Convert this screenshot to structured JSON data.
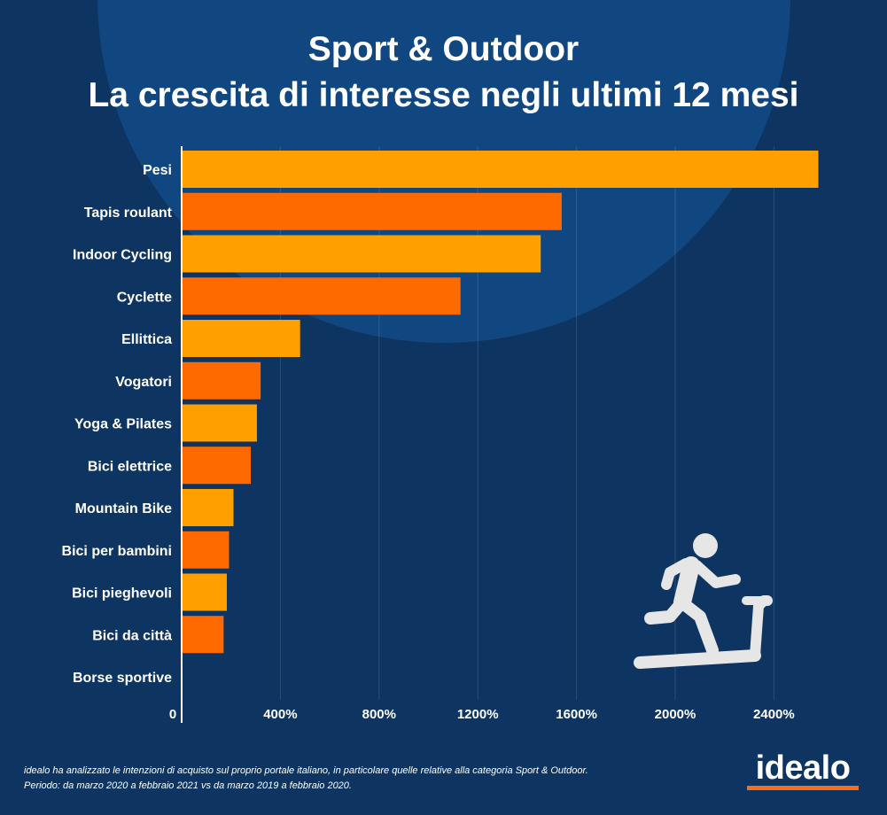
{
  "title": {
    "line1": "Sport & Outdoor",
    "line2": "La crescita di interesse negli ultimi 12 mesi"
  },
  "colors": {
    "background": "#0e3562",
    "circle": "#114780",
    "bar_a": "#ffa000",
    "bar_b": "#ff6a00",
    "axis": "#ffffff",
    "icon": "#e6e6e6"
  },
  "chart_data": {
    "type": "bar",
    "orientation": "horizontal",
    "categories": [
      "Pesi",
      "Tapis roulant",
      "Indoor Cycling",
      "Cyclette",
      "Ellittica",
      "Vogatori",
      "Yoga & Pilates",
      "Bici elettrice",
      "Mountain Bike",
      "Bici per bambini",
      "Bici pieghevoli",
      "Bici da città",
      "Borse sportive"
    ],
    "values": [
      2580,
      1540,
      1455,
      1130,
      480,
      320,
      305,
      280,
      210,
      192,
      183,
      170,
      0
    ],
    "x_ticks": [
      "0",
      "400%",
      "800%",
      "1200%",
      "1600%",
      "2000%",
      "2400%"
    ],
    "xlim": [
      0,
      2600
    ],
    "unit": "%",
    "grid": true,
    "bar_colors": [
      "#ffa000",
      "#ff6a00"
    ]
  },
  "icon": {
    "name": "treadmill-runner-icon"
  },
  "footnote": {
    "line1": "idealo ha analizzato le intenzioni di acquisto sul proprio portale italiano, in particolare quelle relative alla categoria Sport & Outdoor.",
    "line2": "Periodo: da marzo 2020 a febbraio 2021 vs da marzo 2019 a febbraio 2020."
  },
  "logo": {
    "text": "idealo"
  }
}
